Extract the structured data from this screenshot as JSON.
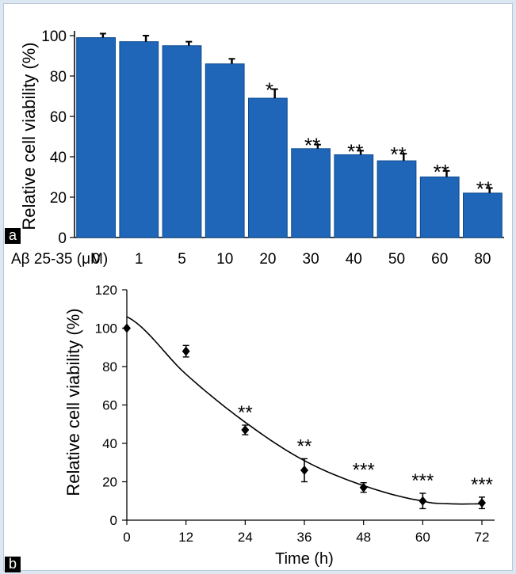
{
  "colors": {
    "background": "#dde7f2",
    "bar": "#1f66b8",
    "bar_edge": "#0d4a8f",
    "ink": "#000000"
  },
  "panels": {
    "a": "a",
    "b": "b"
  },
  "chart_data": [
    {
      "id": "a",
      "type": "bar",
      "ylabel": "Relative cell viability (%)",
      "xlabel": "Aβ 25-35 (μM)",
      "categories": [
        "0",
        "1",
        "5",
        "10",
        "20",
        "30",
        "40",
        "50",
        "60",
        "80"
      ],
      "values": [
        99,
        97,
        95,
        86,
        69,
        44,
        41,
        38,
        30,
        22
      ],
      "errors": [
        2,
        3,
        2,
        2.5,
        4.5,
        2,
        2,
        3.5,
        3,
        2.5
      ],
      "significance": [
        "",
        "",
        "",
        "",
        "*",
        "**",
        "**",
        "**",
        "**",
        "**"
      ],
      "ylim": [
        0,
        100
      ],
      "yticks": [
        0,
        20,
        40,
        60,
        80,
        100
      ],
      "grid": false
    },
    {
      "id": "b",
      "type": "scatter",
      "xlabel": "Time (h)",
      "ylabel": "Relative cell viability (%)",
      "x": [
        0,
        12,
        24,
        36,
        48,
        60,
        72
      ],
      "y": [
        100,
        88,
        47,
        26,
        17,
        10,
        9
      ],
      "errors": [
        0,
        3,
        2.5,
        6,
        2.5,
        4,
        3
      ],
      "significance": [
        "",
        "",
        "**",
        "**",
        "***",
        "***",
        "***"
      ],
      "fit_curve": {
        "x": [
          0,
          12,
          24,
          36,
          48,
          60,
          66,
          72
        ],
        "y": [
          106,
          76,
          51,
          31,
          18,
          10,
          8.5,
          8.5
        ]
      },
      "xlim": [
        0,
        72
      ],
      "ylim": [
        0,
        120
      ],
      "xticks": [
        0,
        12,
        24,
        36,
        48,
        60,
        72
      ],
      "yticks": [
        0,
        20,
        40,
        60,
        80,
        100,
        120
      ],
      "grid": false
    }
  ]
}
